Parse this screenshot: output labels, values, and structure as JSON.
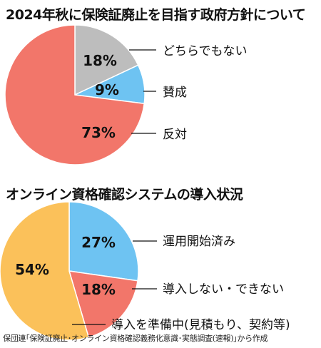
{
  "chart_data": [
    {
      "type": "pie",
      "title": "2024年秋に保険証廃止を目指す政府方針について",
      "slices": [
        {
          "label": "どちらでもない",
          "value": 18,
          "display": "18%",
          "color": "#bdbdbd"
        },
        {
          "label": "賛成",
          "value": 9,
          "display": "9%",
          "color": "#6ec3f2"
        },
        {
          "label": "反対",
          "value": 73,
          "display": "73%",
          "color": "#f2766a"
        }
      ]
    },
    {
      "type": "pie",
      "title": "オンライン資格確認システムの導入状況",
      "slices": [
        {
          "label": "運用開始済み",
          "value": 27,
          "display": "27%",
          "color": "#6ec3f2"
        },
        {
          "label": "導入しない・できない",
          "value": 18,
          "display": "18%",
          "color": "#f2766a"
        },
        {
          "label": "導入を準備中(見積もり、契約等)",
          "value": 54,
          "display": "54%",
          "color": "#fbc15a"
        }
      ]
    }
  ],
  "source": "保団連｢保険証廃止･オンライン資格確認義務化意識･実態調査(速報)｣から作成"
}
